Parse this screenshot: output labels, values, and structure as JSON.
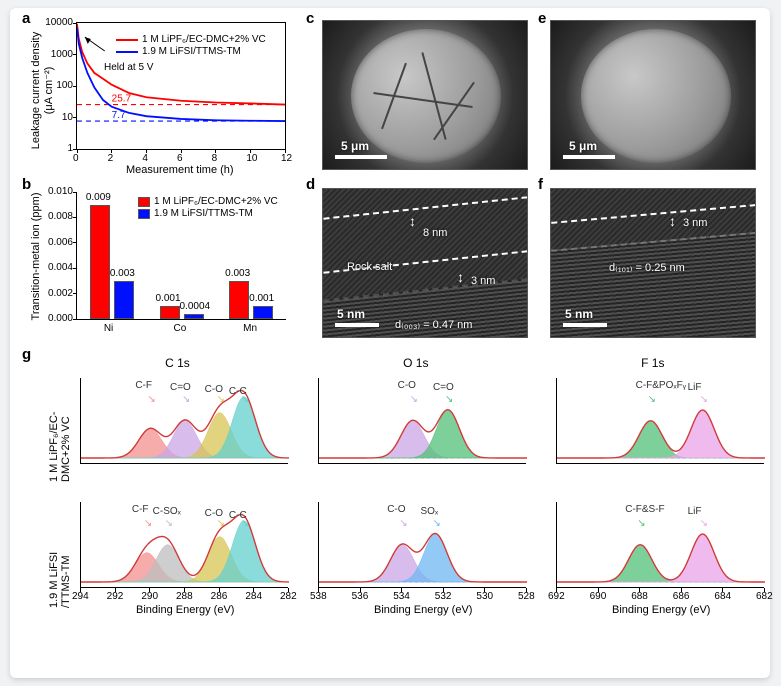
{
  "panels": {
    "a": {
      "label": "a",
      "title": "Leakage current density (μA cm⁻²)",
      "xtitle": "Measurement time (h)",
      "xlim": [
        0,
        12
      ],
      "xticks": [
        0,
        2,
        4,
        6,
        8,
        10,
        12
      ],
      "ylim_log": [
        1,
        10000
      ],
      "yticks": [
        1,
        10,
        100,
        1000,
        10000
      ],
      "annotation": "Held at 5 V",
      "series": [
        {
          "name": "1 M LiPF₆/EC-DMC+2% VC",
          "color": "#ff0000",
          "asymptote": 25.7,
          "points": [
            [
              0,
              9500
            ],
            [
              0.1,
              3200
            ],
            [
              0.3,
              1200
            ],
            [
              0.6,
              520
            ],
            [
              1,
              260
            ],
            [
              1.5,
              170
            ],
            [
              2,
              110
            ],
            [
              3,
              60
            ],
            [
              4,
              44
            ],
            [
              6,
              34
            ],
            [
              8,
              30
            ],
            [
              10,
              28
            ],
            [
              12,
              25.7
            ]
          ]
        },
        {
          "name": "1.9 M LiFSI/TTMS-TM",
          "color": "#0010ff",
          "asymptote": 7.7,
          "points": [
            [
              0,
              7200
            ],
            [
              0.1,
              2200
            ],
            [
              0.3,
              780
            ],
            [
              0.6,
              260
            ],
            [
              1,
              90
            ],
            [
              1.5,
              36
            ],
            [
              2,
              22
            ],
            [
              3,
              14
            ],
            [
              4,
              11
            ],
            [
              6,
              9
            ],
            [
              8,
              8.2
            ],
            [
              10,
              7.9
            ],
            [
              12,
              7.7
            ]
          ]
        }
      ]
    },
    "b": {
      "label": "b",
      "title": "Transition-metal ion (ppm)",
      "categories": [
        "Ni",
        "Co",
        "Mn"
      ],
      "ylim": [
        0,
        0.01
      ],
      "yticks": [
        0.0,
        0.002,
        0.004,
        0.006,
        0.008,
        0.01
      ],
      "series": [
        {
          "name": "1 M LiPF₆/EC-DMC+2% VC",
          "color": "#ff0000",
          "values": [
            0.009,
            0.001,
            0.003
          ]
        },
        {
          "name": "1.9 M LiFSI/TTMS-TM",
          "color": "#0010ff",
          "values": [
            0.003,
            0.0004,
            0.001
          ]
        }
      ]
    },
    "c": {
      "label": "c",
      "scale_text": "5 μm",
      "cracked": true
    },
    "d": {
      "label": "d",
      "scale_text": "5 nm",
      "gap_top": "8 nm",
      "gap_bot": "3 nm",
      "phase": "Rock salt",
      "d_label": "d₍₀₀₃₎ = 0.47 nm"
    },
    "e": {
      "label": "e",
      "scale_text": "5 μm",
      "cracked": false
    },
    "f": {
      "label": "f",
      "scale_text": "5 nm",
      "gap_top": "3 nm",
      "d_label": "d₍₁₀₁₎ = 0.25 nm"
    },
    "g": {
      "label": "g",
      "columns": [
        {
          "title": "C 1s",
          "xlim": [
            294,
            282
          ],
          "xticks": [
            294,
            292,
            290,
            288,
            286,
            284,
            282
          ],
          "xtitle": "Binding Energy (eV)",
          "rows": [
            {
              "peaks": [
                {
                  "l": "C-F",
                  "c": "#f49090",
                  "x": 290
                },
                {
                  "l": "C=O",
                  "c": "#caa6e6",
                  "x": 288
                },
                {
                  "l": "C-O",
                  "c": "#d8c454",
                  "x": 286
                },
                {
                  "l": "C-C",
                  "c": "#63d0cf",
                  "x": 284.6
                }
              ]
            },
            {
              "peaks": [
                {
                  "l": "C-F",
                  "c": "#f49090",
                  "x": 290.2
                },
                {
                  "l": "C-SOₓ",
                  "c": "#bdbdbd",
                  "x": 289
                },
                {
                  "l": "C-O",
                  "c": "#d8c454",
                  "x": 286
                },
                {
                  "l": "C-C",
                  "c": "#63d0cf",
                  "x": 284.6
                }
              ]
            }
          ]
        },
        {
          "title": "O 1s",
          "xlim": [
            538,
            528
          ],
          "xticks": [
            538,
            536,
            534,
            532,
            530,
            528
          ],
          "xtitle": "Binding Energy (eV)",
          "rows": [
            {
              "peaks": [
                {
                  "l": "C-O",
                  "c": "#caa6e6",
                  "x": 533.5
                },
                {
                  "l": "C=O",
                  "c": "#53c07a",
                  "x": 531.8
                }
              ]
            },
            {
              "peaks": [
                {
                  "l": "C-O",
                  "c": "#caa6e6",
                  "x": 534
                },
                {
                  "l": "SOₓ",
                  "c": "#6fb8f2",
                  "x": 532.4
                }
              ]
            }
          ]
        },
        {
          "title": "F 1s",
          "xlim": [
            692,
            682
          ],
          "xticks": [
            692,
            690,
            688,
            686,
            684,
            682
          ],
          "xtitle": "Binding Energy (eV)",
          "rows": [
            {
              "peaks": [
                {
                  "l": "C-F&POₓFᵧ",
                  "c": "#53c07a",
                  "x": 687.5
                },
                {
                  "l": "LiF",
                  "c": "#e9a4e9",
                  "x": 685
                }
              ]
            },
            {
              "peaks": [
                {
                  "l": "C-F&S-F",
                  "c": "#53c07a",
                  "x": 688
                },
                {
                  "l": "LiF",
                  "c": "#e9a4e9",
                  "x": 685
                }
              ]
            }
          ]
        }
      ],
      "row_labels": [
        "1 M LiPF₆/EC-\nDMC+2% VC",
        "1.9 M LiFSI\n/TTMS-TM"
      ]
    }
  },
  "colors": {
    "envelope": "#d23a3a",
    "envelope_dash": "#666"
  }
}
